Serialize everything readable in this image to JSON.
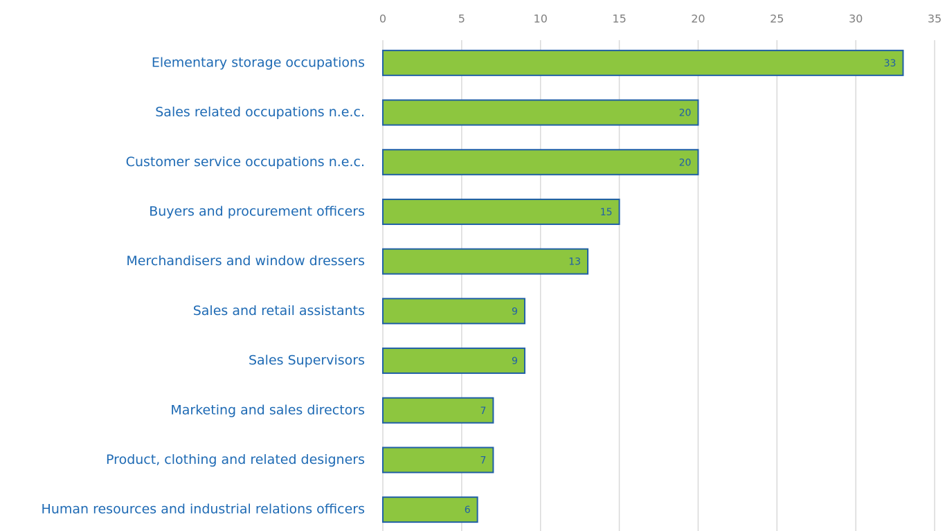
{
  "chart_data": {
    "type": "bar",
    "horizontal": true,
    "categories": [
      "Elementary storage occupations",
      "Sales related occupations n.e.c.",
      "Customer service occupations n.e.c.",
      "Buyers and procurement officers",
      "Merchandisers and window dressers",
      "Sales and retail assistants",
      "Sales Supervisors",
      "Marketing and sales directors",
      "Product, clothing and related designers",
      "Human resources and industrial relations officers"
    ],
    "values": [
      33,
      20,
      20,
      15,
      13,
      9,
      9,
      7,
      7,
      6
    ],
    "color": "#8dc63f",
    "edge_color": "#1f5fa5",
    "xlim": [
      0,
      35
    ],
    "xticks": [
      0,
      5,
      10,
      15,
      20,
      25,
      30,
      35
    ],
    "grid": true
  }
}
